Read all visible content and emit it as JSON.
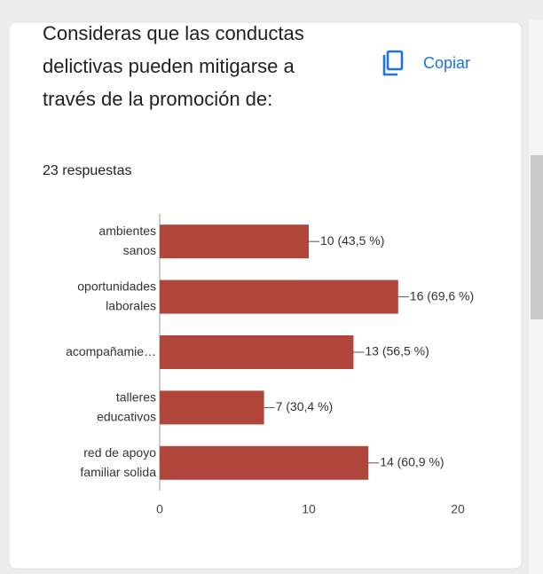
{
  "header": {
    "title": "Consideras que las conductas\ndelictivas pueden mitigarse a\ntravés de la promoción de:",
    "copy": "Copiar",
    "responses": "23 respuestas"
  },
  "chart_data": {
    "type": "bar",
    "orientation": "horizontal",
    "categories": [
      "ambientes\nsanos",
      "oportunidades\nlaborales",
      "acompañamie…",
      "talleres\neducativos",
      "red de apoyo\nfamiliar solida"
    ],
    "values": [
      10,
      16,
      13,
      7,
      14
    ],
    "value_labels": [
      "10 (43,5 %)",
      "16 (69,6 %)",
      "13 (56,5 %)",
      "7 (30,4 %)",
      "14 (60,9 %)"
    ],
    "color": "#b0463b",
    "xlim": [
      0,
      20
    ],
    "xticks": [
      0,
      10,
      20
    ],
    "grid": false
  }
}
